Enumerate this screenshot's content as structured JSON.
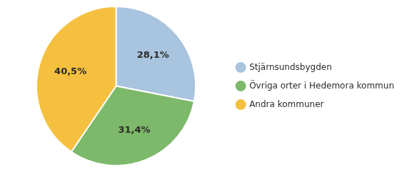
{
  "chart_data": {
    "type": "pie",
    "categories": [
      "Stjärnsundsbygden",
      "Övriga orter i Hedemora kommun",
      "Andra kommuner"
    ],
    "values": [
      28.1,
      31.4,
      40.5
    ],
    "value_labels": [
      "28,1%",
      "31,4%",
      "40,5%"
    ],
    "colors": [
      "#a8c4de",
      "#7db96a",
      "#f5c040"
    ],
    "data_labels": true,
    "legend": "right"
  }
}
